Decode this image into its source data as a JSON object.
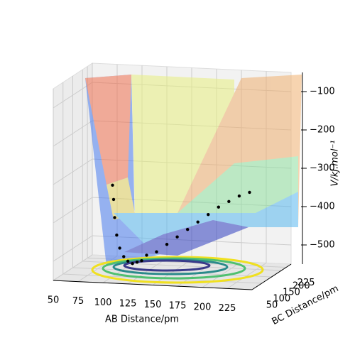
{
  "chart_data": {
    "type": "scatter3d",
    "xlabel": "AB Distance/pm",
    "ylabel": "BC Distance/pm",
    "zlabel": "V/kJ.mol⁻¹",
    "xlim": [
      50,
      250
    ],
    "ylim": [
      50,
      250
    ],
    "zlim": [
      -550,
      -50
    ],
    "xticks": [
      50,
      75,
      100,
      125,
      150,
      175,
      200,
      225
    ],
    "yticks": [
      50,
      100,
      150,
      200,
      225
    ],
    "zticks": [
      {
        "value": -100,
        "label": "−100"
      },
      {
        "value": -200,
        "label": "−200"
      },
      {
        "value": -300,
        "label": "−300"
      },
      {
        "value": -400,
        "label": "−400"
      },
      {
        "value": -500,
        "label": "−500"
      }
    ],
    "grid": true,
    "series": [
      {
        "color": "#000000",
        "x": [
          90,
          95,
          100,
          105,
          110,
          115,
          120,
          125,
          130,
          135,
          140,
          150,
          160,
          170,
          180,
          190,
          200,
          210,
          220,
          230,
          240
        ],
        "y": [
          150,
          130,
          110,
          95,
          85,
          80,
          76,
          74,
          72,
          70,
          70,
          70,
          72,
          74,
          76,
          78,
          80,
          82,
          84,
          86,
          88
        ],
        "z": [
          -330,
          -360,
          -400,
          -440,
          -470,
          -490,
          -500,
          -505,
          -500,
          -495,
          -480,
          -470,
          -450,
          -430,
          -410,
          -390,
          -370,
          -350,
          -335,
          -320,
          -310
        ]
      }
    ]
  }
}
